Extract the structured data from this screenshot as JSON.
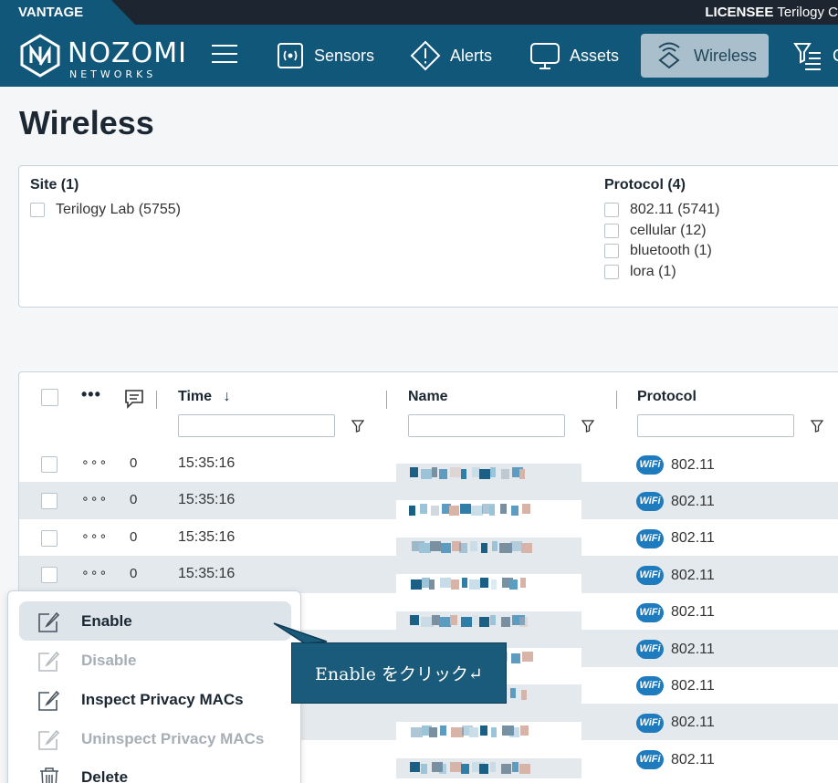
{
  "topbar": {
    "brand": "VANTAGE",
    "license_label": "LICENSEE",
    "license_value": "Terilogy C"
  },
  "nav": {
    "logo_main": "NOZOMI",
    "logo_sub": "NETWORKS",
    "items": [
      {
        "label": "Sensors",
        "icon": "sensor-icon"
      },
      {
        "label": "Alerts",
        "icon": "alert-icon"
      },
      {
        "label": "Assets",
        "icon": "monitor-icon"
      },
      {
        "label": "Wireless",
        "icon": "wireless-icon",
        "active": true
      },
      {
        "label": "C",
        "icon": "filter-list-icon"
      }
    ]
  },
  "page": {
    "title": "Wireless"
  },
  "filters": {
    "site": {
      "title": "Site (1)",
      "options": [
        "Terilogy Lab (5755)"
      ]
    },
    "protocol": {
      "title": "Protocol (4)",
      "options": [
        "802.11 (5741)",
        "cellular (12)",
        "bluetooth (1)",
        "lora (1)"
      ]
    }
  },
  "table": {
    "columns": {
      "time": "Time",
      "name": "Name",
      "protocol": "Protocol"
    },
    "sort_indicator": "↓",
    "rows": [
      {
        "count": "0",
        "time": "15:35:16",
        "protocol": "802.11"
      },
      {
        "count": "0",
        "time": "15:35:16",
        "protocol": "802.11"
      },
      {
        "count": "0",
        "time": "15:35:16",
        "protocol": "802.11"
      },
      {
        "count": "0",
        "time": "15:35:16",
        "protocol": "802.11"
      },
      {
        "count": "",
        "time": "",
        "protocol": "802.11"
      },
      {
        "count": "",
        "time": "",
        "protocol": "802.11"
      },
      {
        "count": "",
        "time": "",
        "protocol": "802.11"
      },
      {
        "count": "",
        "time": "",
        "protocol": "802.11"
      },
      {
        "count": "",
        "time": "",
        "protocol": "802.11"
      }
    ],
    "wifi_badge": "WiFi"
  },
  "context_menu": {
    "items": [
      {
        "label": "Enable",
        "state": "highlighted"
      },
      {
        "label": "Disable",
        "state": "disabled"
      },
      {
        "label": "Inspect Privacy MACs",
        "state": "normal"
      },
      {
        "label": "Uninspect Privacy MACs",
        "state": "disabled"
      },
      {
        "label": "Delete",
        "state": "normal"
      }
    ]
  },
  "callout": {
    "text": "Enable をクリック↵"
  },
  "colors": {
    "nav_bg": "#115779",
    "active_nav": "#a9bfcc",
    "callout_bg": "#1a5a7a",
    "row_alt": "#e4e9ed"
  }
}
